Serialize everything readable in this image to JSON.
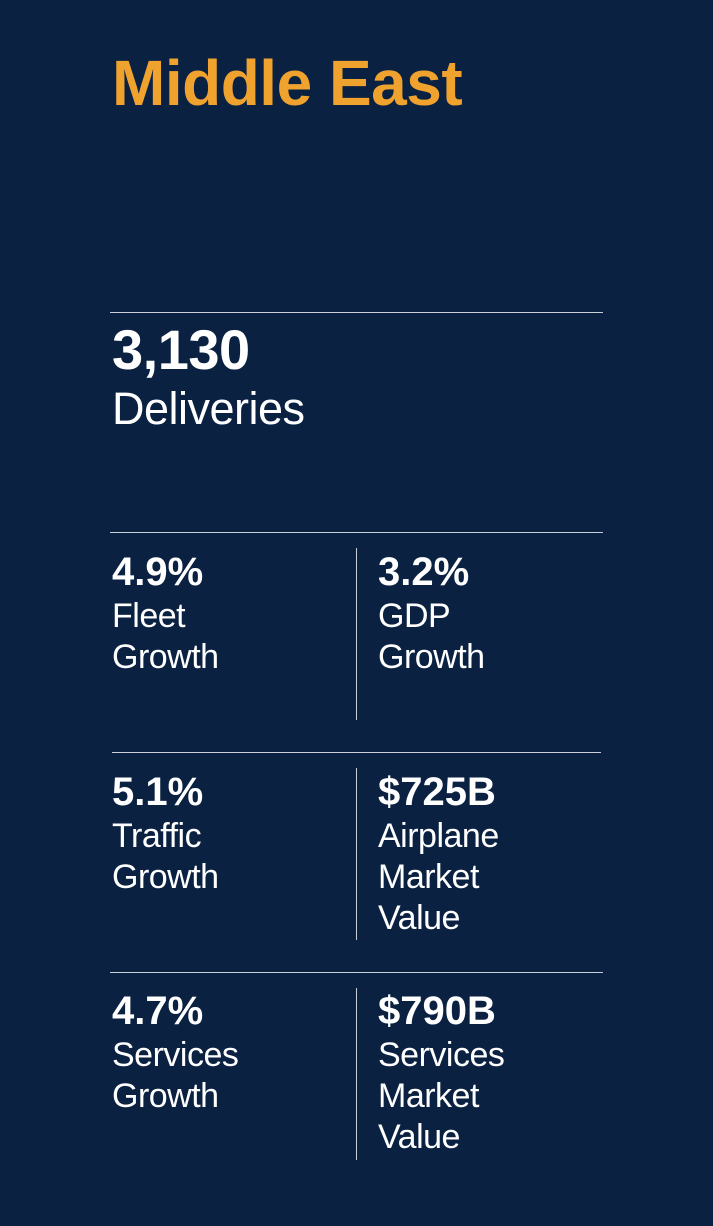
{
  "region": {
    "title": "Middle East"
  },
  "headline": {
    "value": "3,130",
    "label": "Deliveries"
  },
  "stats": [
    {
      "value": "4.9%",
      "label_lines": [
        "Fleet",
        "Growth"
      ]
    },
    {
      "value": "3.2%",
      "label_lines": [
        "GDP",
        "Growth"
      ]
    },
    {
      "value": "5.1%",
      "label_lines": [
        "Traffic",
        "Growth"
      ]
    },
    {
      "value": "$725B",
      "label_lines": [
        "Airplane",
        "Market",
        "Value"
      ]
    },
    {
      "value": "4.7%",
      "label_lines": [
        "Services",
        "Growth"
      ]
    },
    {
      "value": "$790B",
      "label_lines": [
        "Services",
        "Market",
        "Value"
      ]
    }
  ],
  "colors": {
    "background": "#0a2142",
    "title": "#f0a22f",
    "text": "#ffffff",
    "rule": "#c9cfd8"
  }
}
